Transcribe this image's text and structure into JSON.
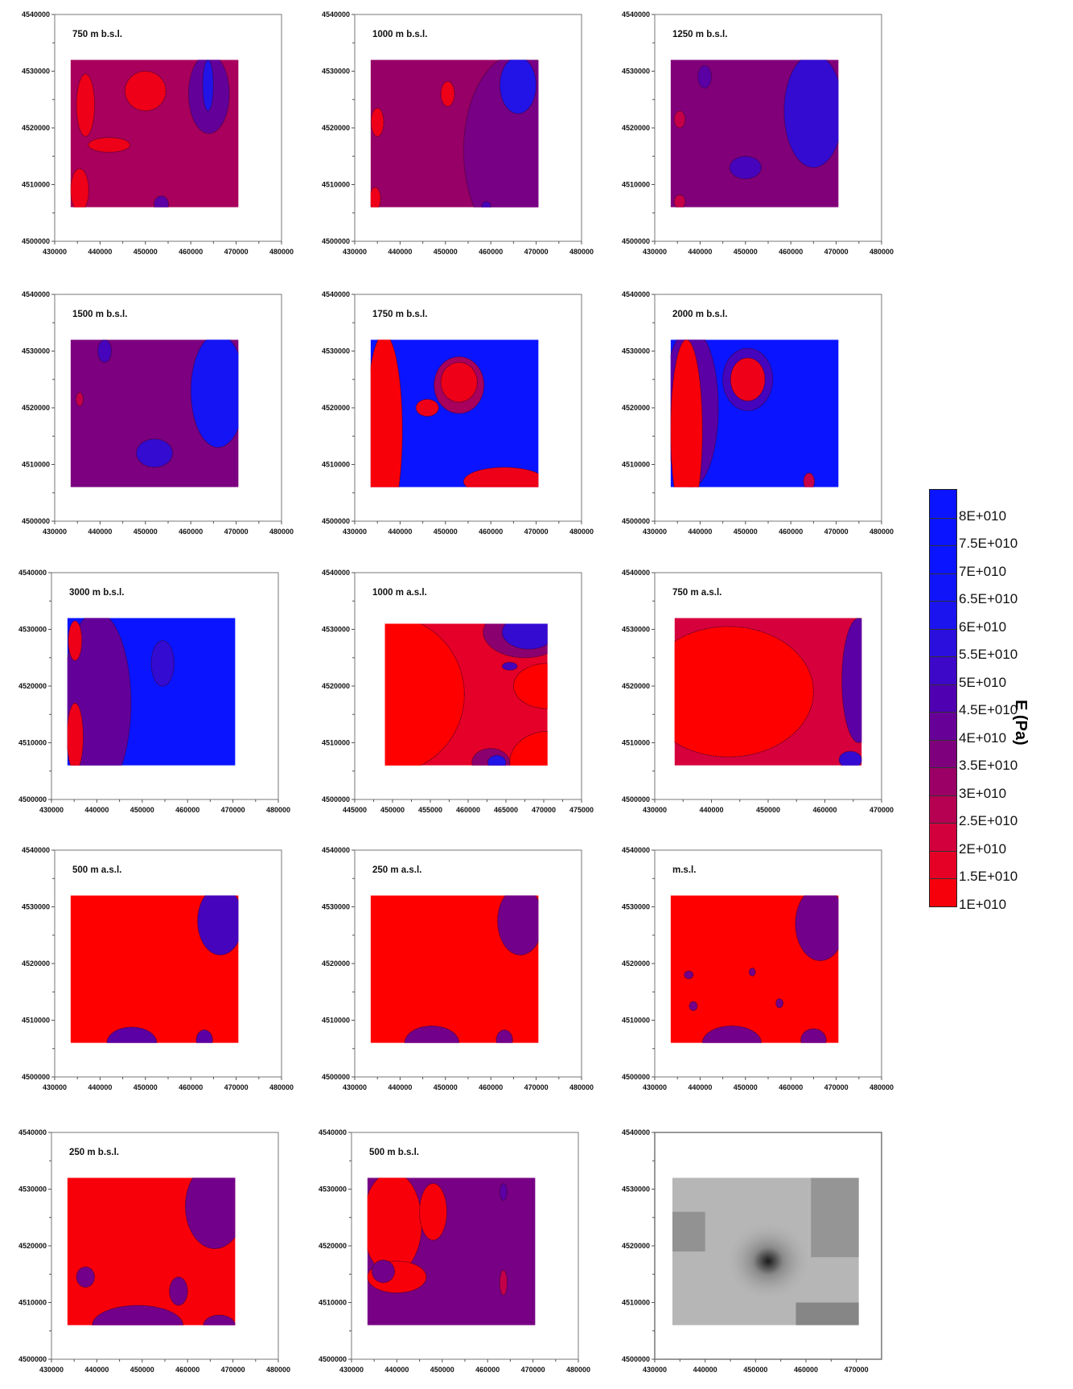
{
  "chart_data": {
    "type": "heatmap",
    "description_unit": "Young's modulus E (Pa), contour maps at depth slices",
    "colorbar": {
      "title": "E (Pa)",
      "tick_labels": [
        "8E+010",
        "7.5E+010",
        "7E+010",
        "6.5E+010",
        "6E+010",
        "5.5E+010",
        "5E+010",
        "4.5E+010",
        "4E+010",
        "3.5E+010",
        "3E+010",
        "2.5E+010",
        "2E+010",
        "1.5E+010",
        "1E+010"
      ],
      "range": [
        10000000000.0,
        85000000000.0
      ],
      "colors": {
        "low": "#ff0000",
        "mid": "#8a0070",
        "high": "#0a14ff"
      }
    },
    "panels": [
      {
        "title": "750 m b.s.l.",
        "xlim": [
          430000,
          480000
        ],
        "xticks": [
          "430000",
          "440000",
          "450000",
          "460000",
          "470000",
          "480000"
        ],
        "ylim": [
          4500000,
          4540000
        ],
        "yticks": [
          "4500000",
          "4510000",
          "4520000",
          "4530000",
          "4540000"
        ],
        "extent": [
          433500,
          470500,
          4506000,
          4532000
        ],
        "base": 30000000000.0,
        "regions": [
          [
            464000,
            4526000,
            4500,
            7000,
            43000000000.0
          ],
          [
            463800,
            4527500,
            1200,
            4500,
            60000000000.0
          ],
          [
            450000,
            4526500,
            4500,
            3500,
            15000000000.0
          ],
          [
            436800,
            4524000,
            2000,
            5500,
            15000000000.0
          ],
          [
            442000,
            4517000,
            4600,
            1300,
            15000000000.0
          ],
          [
            435500,
            4509000,
            2000,
            3800,
            15000000000.0
          ],
          [
            453500,
            4506500,
            1600,
            1500,
            45000000000.0
          ]
        ]
      },
      {
        "title": "1000 m b.s.l.",
        "xlim": [
          430000,
          480000
        ],
        "xticks": [
          "430000",
          "440000",
          "450000",
          "460000",
          "470000",
          "480000"
        ],
        "ylim": [
          4500000,
          4540000
        ],
        "yticks": [
          "4500000",
          "4510000",
          "4520000",
          "4530000",
          "4540000"
        ],
        "extent": [
          433500,
          470500,
          4506000,
          4532000
        ],
        "base": 33000000000.0,
        "regions": [
          [
            466000,
            4516000,
            12000,
            17000,
            39000000000.0
          ],
          [
            466000,
            4527500,
            4000,
            5000,
            60000000000.0
          ],
          [
            450500,
            4526000,
            1500,
            2200,
            15000000000.0
          ],
          [
            435000,
            4521000,
            1400,
            2500,
            15000000000.0
          ],
          [
            434500,
            4507500,
            1200,
            2000,
            15000000000.0
          ],
          [
            459000,
            4506200,
            1000,
            800,
            50000000000.0
          ]
        ]
      },
      {
        "title": "1250 m b.s.l.",
        "xlim": [
          430000,
          480000
        ],
        "xticks": [
          "430000",
          "440000",
          "450000",
          "460000",
          "470000",
          "480000"
        ],
        "ylim": [
          4500000,
          4540000
        ],
        "yticks": [
          "4500000",
          "4510000",
          "4520000",
          "4530000",
          "4540000"
        ],
        "extent": [
          433500,
          470500,
          4506000,
          4532000
        ],
        "base": 37000000000.0,
        "regions": [
          [
            465000,
            4523000,
            6500,
            10000,
            55000000000.0
          ],
          [
            450000,
            4513000,
            3500,
            2000,
            50000000000.0
          ],
          [
            441000,
            4529000,
            1500,
            2000,
            45000000000.0
          ],
          [
            435500,
            4521500,
            1200,
            1500,
            25000000000.0
          ],
          [
            435500,
            4507000,
            1200,
            1200,
            25000000000.0
          ]
        ]
      },
      {
        "title": "1500 m b.s.l.",
        "xlim": [
          430000,
          480000
        ],
        "xticks": [
          "430000",
          "440000",
          "450000",
          "460000",
          "470000",
          "480000"
        ],
        "ylim": [
          4500000,
          4540000
        ],
        "yticks": [
          "4500000",
          "4510000",
          "4520000",
          "4530000",
          "4540000"
        ],
        "extent": [
          433500,
          470500,
          4506000,
          4532000
        ],
        "base": 38000000000.0,
        "regions": [
          [
            466000,
            4523000,
            6000,
            10000,
            65000000000.0
          ],
          [
            452000,
            4512000,
            4000,
            2500,
            55000000000.0
          ],
          [
            441000,
            4530000,
            1500,
            2000,
            50000000000.0
          ],
          [
            435500,
            4521500,
            800,
            1200,
            25000000000.0
          ]
        ]
      },
      {
        "title": "1750 m b.s.l.",
        "xlim": [
          430000,
          480000
        ],
        "xticks": [
          "430000",
          "440000",
          "450000",
          "460000",
          "470000",
          "480000"
        ],
        "ylim": [
          4500000,
          4540000
        ],
        "yticks": [
          "4500000",
          "4510000",
          "4520000",
          "4530000",
          "4540000"
        ],
        "extent": [
          433500,
          470500,
          4506000,
          4532000
        ],
        "base": 70000000000.0,
        "regions": [
          [
            436500,
            4516000,
            4000,
            17000,
            12000000000.0
          ],
          [
            453000,
            4524000,
            5500,
            5000,
            30000000000.0
          ],
          [
            453000,
            4524500,
            4000,
            3500,
            15000000000.0
          ],
          [
            463000,
            4507000,
            9000,
            2500,
            15000000000.0
          ],
          [
            446000,
            4520000,
            2500,
            1500,
            15000000000.0
          ]
        ]
      },
      {
        "title": "2000 m b.s.l.",
        "xlim": [
          430000,
          480000
        ],
        "xticks": [
          "430000",
          "440000",
          "450000",
          "460000",
          "470000",
          "480000"
        ],
        "ylim": [
          4500000,
          4540000
        ],
        "yticks": [
          "4500000",
          "4510000",
          "4520000",
          "4530000",
          "4540000"
        ],
        "extent": [
          433500,
          470500,
          4506000,
          4532000
        ],
        "base": 75000000000.0,
        "regions": [
          [
            438000,
            4520000,
            6000,
            14000,
            45000000000.0
          ],
          [
            437000,
            4516000,
            3500,
            16000,
            12000000000.0
          ],
          [
            450500,
            4525000,
            5500,
            5500,
            50000000000.0
          ],
          [
            450500,
            4525000,
            3800,
            3800,
            15000000000.0
          ],
          [
            464000,
            4507000,
            1200,
            1500,
            25000000000.0
          ]
        ]
      },
      {
        "title": "3000 m b.s.l.",
        "xlim": [
          430000,
          480000
        ],
        "xticks": [
          "430000",
          "440000",
          "450000",
          "460000",
          "470000",
          "480000"
        ],
        "ylim": [
          4500000,
          4540000
        ],
        "yticks": [
          "4500000",
          "4510000",
          "4520000",
          "4530000",
          "4540000"
        ],
        "extent": [
          433500,
          470500,
          4506000,
          4532000
        ],
        "base": 75000000000.0,
        "regions": [
          [
            440000,
            4517000,
            7500,
            16000,
            43000000000.0
          ],
          [
            454500,
            4524000,
            2500,
            4000,
            55000000000.0
          ],
          [
            435200,
            4511000,
            1800,
            6000,
            15000000000.0
          ],
          [
            435200,
            4528000,
            1500,
            3500,
            15000000000.0
          ]
        ]
      },
      {
        "title": "1000 m a.s.l.",
        "xlim": [
          445000,
          475000
        ],
        "xticks": [
          "445000",
          "450000",
          "455000",
          "460000",
          "465000",
          "470000",
          "475000"
        ],
        "ylim": [
          4500000,
          4540000
        ],
        "yticks": [
          "4500000",
          "4510000",
          "4520000",
          "4530000",
          "4540000"
        ],
        "extent": [
          449000,
          470500,
          4506000,
          4531000
        ],
        "base": 18000000000.0,
        "regions": [
          [
            449000,
            4518500,
            10500,
            14000,
            10000000000.0
          ],
          [
            467500,
            4529500,
            5500,
            4500,
            35000000000.0
          ],
          [
            468000,
            4529500,
            3500,
            3000,
            55000000000.0
          ],
          [
            465500,
            4523500,
            1000,
            700,
            50000000000.0
          ],
          [
            470500,
            4520000,
            4500,
            4000,
            10000000000.0
          ],
          [
            470500,
            4506500,
            5000,
            5500,
            10000000000.0
          ],
          [
            463000,
            4506500,
            2500,
            2500,
            35000000000.0
          ],
          [
            463800,
            4506500,
            1200,
            1300,
            60000000000.0
          ]
        ]
      },
      {
        "title": "750 m a.s.l.",
        "xlim": [
          430000,
          470000
        ],
        "xticks": [
          "430000",
          "440000",
          "450000",
          "460000",
          "470000"
        ],
        "ylim": [
          4500000,
          4540000
        ],
        "yticks": [
          "4500000",
          "4510000",
          "4520000",
          "4530000",
          "4540000"
        ],
        "extent": [
          433500,
          466500,
          4506000,
          4532000
        ],
        "base": 22000000000.0,
        "regions": [
          [
            443000,
            4519000,
            15000,
            11500,
            10000000000.0
          ],
          [
            466000,
            4521000,
            3000,
            11000,
            45000000000.0
          ],
          [
            464500,
            4507000,
            2000,
            1500,
            55000000000.0
          ]
        ]
      },
      {
        "title": "500 m a.s.l.",
        "xlim": [
          430000,
          480000
        ],
        "xticks": [
          "430000",
          "440000",
          "450000",
          "460000",
          "470000",
          "480000"
        ],
        "ylim": [
          4500000,
          4540000
        ],
        "yticks": [
          "4500000",
          "4510000",
          "4520000",
          "4530000",
          "4540000"
        ],
        "extent": [
          433500,
          470500,
          4506000,
          4532000
        ],
        "base": 10000000000.0,
        "regions": [
          [
            466500,
            4527500,
            5000,
            6000,
            50000000000.0
          ],
          [
            447000,
            4506000,
            5500,
            2800,
            45000000000.0
          ],
          [
            463000,
            4506500,
            1800,
            1800,
            45000000000.0
          ]
        ]
      },
      {
        "title": "250 m a.s.l.",
        "xlim": [
          430000,
          480000
        ],
        "xticks": [
          "430000",
          "440000",
          "450000",
          "460000",
          "470000",
          "480000"
        ],
        "ylim": [
          4500000,
          4540000
        ],
        "yticks": [
          "4500000",
          "4510000",
          "4520000",
          "4530000",
          "4540000"
        ],
        "extent": [
          433500,
          470500,
          4506000,
          4532000
        ],
        "base": 10000000000.0,
        "regions": [
          [
            466500,
            4527500,
            5000,
            6000,
            40000000000.0
          ],
          [
            447000,
            4506000,
            6000,
            3000,
            40000000000.0
          ],
          [
            463000,
            4506500,
            1800,
            1800,
            40000000000.0
          ]
        ]
      },
      {
        "title": "m.s.l.",
        "xlim": [
          430000,
          480000
        ],
        "xticks": [
          "430000",
          "440000",
          "450000",
          "460000",
          "470000",
          "480000"
        ],
        "ylim": [
          4500000,
          4540000
        ],
        "yticks": [
          "4500000",
          "4510000",
          "4520000",
          "4530000",
          "4540000"
        ],
        "extent": [
          433500,
          470500,
          4506000,
          4532000
        ],
        "base": 10000000000.0,
        "regions": [
          [
            466500,
            4527000,
            5500,
            6500,
            40000000000.0
          ],
          [
            447000,
            4506000,
            6500,
            3000,
            40000000000.0
          ],
          [
            465000,
            4506500,
            2800,
            2000,
            40000000000.0
          ],
          [
            437500,
            4518000,
            1000,
            700,
            40000000000.0
          ],
          [
            438500,
            4512500,
            900,
            800,
            40000000000.0
          ],
          [
            451500,
            4518500,
            700,
            700,
            40000000000.0
          ],
          [
            457500,
            4513000,
            800,
            800,
            40000000000.0
          ]
        ]
      },
      {
        "title": "250 m b.s.l.",
        "xlim": [
          430000,
          480000
        ],
        "xticks": [
          "430000",
          "440000",
          "450000",
          "460000",
          "470000",
          "480000"
        ],
        "ylim": [
          4500000,
          4540000
        ],
        "yticks": [
          "4500000",
          "4510000",
          "4520000",
          "4530000",
          "4540000"
        ],
        "extent": [
          433500,
          470500,
          4506000,
          4532000
        ],
        "base": 12000000000.0,
        "regions": [
          [
            466000,
            4527000,
            6500,
            7500,
            40000000000.0
          ],
          [
            449000,
            4506000,
            10000,
            3500,
            40000000000.0
          ],
          [
            437500,
            4514500,
            2000,
            1800,
            40000000000.0
          ],
          [
            458000,
            4512000,
            2000,
            2500,
            40000000000.0
          ],
          [
            467000,
            4506000,
            3500,
            1800,
            40000000000.0
          ]
        ]
      },
      {
        "title": "500 m b.s.l.",
        "xlim": [
          430000,
          480000
        ],
        "xticks": [
          "430000",
          "440000",
          "450000",
          "460000",
          "470000",
          "480000"
        ],
        "ylim": [
          4500000,
          4540000
        ],
        "yticks": [
          "4500000",
          "4510000",
          "4520000",
          "4530000",
          "4540000"
        ],
        "extent": [
          433500,
          470500,
          4506000,
          4532000
        ],
        "base": 39000000000.0,
        "regions": [
          [
            439000,
            4524000,
            6500,
            9000,
            12000000000.0
          ],
          [
            440000,
            4514500,
            6500,
            2800,
            12000000000.0
          ],
          [
            448000,
            4526000,
            3000,
            5000,
            12000000000.0
          ],
          [
            437000,
            4515500,
            2500,
            2000,
            40000000000.0
          ],
          [
            463500,
            4529500,
            800,
            1500,
            45000000000.0
          ],
          [
            463500,
            4513500,
            800,
            2200,
            25000000000.0
          ]
        ]
      },
      {
        "title": "",
        "xlim": [
          430000,
          475000
        ],
        "xticks": [
          "430000",
          "440000",
          "450000",
          "460000",
          "470000"
        ],
        "ylim": [
          4500000,
          4540000
        ],
        "yticks": [
          "4500000",
          "4510000",
          "4520000",
          "4530000",
          "4540000"
        ],
        "extent": [
          433500,
          470500,
          4506000,
          4532000
        ],
        "base": null,
        "relief": true,
        "regions": []
      }
    ]
  }
}
